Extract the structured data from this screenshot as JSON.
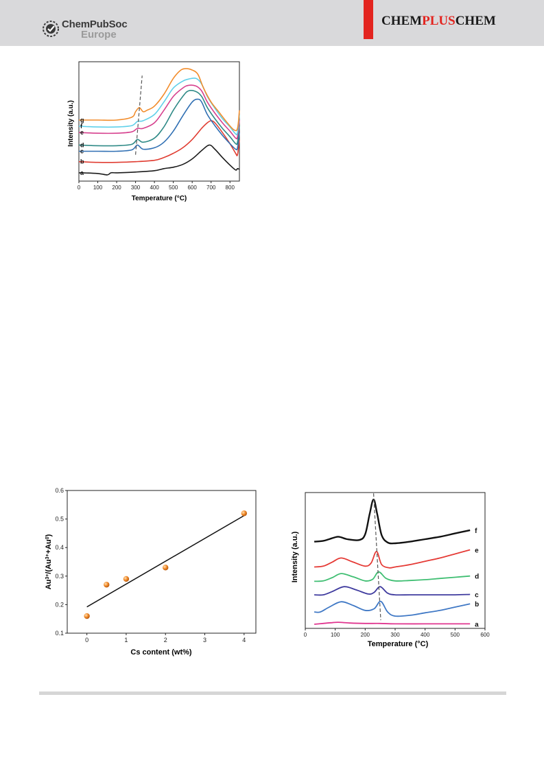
{
  "header": {
    "publisher_name": "ChemPubSoc",
    "publisher_region": "Europe",
    "journal_part1": "CHEM",
    "journal_part2": "PLUS",
    "journal_part3": "CHEM",
    "accent_color": "#e3241f",
    "header_bg": "#d9d9db"
  },
  "chart_data": [
    {
      "type": "line",
      "xlabel": "Temperature (°C)",
      "ylabel": "Intensity (a.u.)",
      "xlim": [
        0,
        850
      ],
      "xticks": [
        0,
        100,
        200,
        300,
        400,
        500,
        600,
        700,
        800
      ],
      "y_ticks_shown": false,
      "series": [
        {
          "name": "a",
          "color": "#1a1a1a",
          "x": [
            0,
            100,
            150,
            170,
            200,
            300,
            400,
            450,
            500,
            550,
            600,
            650,
            690,
            720,
            760,
            800,
            830,
            840,
            850
          ],
          "y": [
            0.02,
            0.01,
            -0.01,
            0.02,
            0.02,
            0.03,
            0.05,
            0.08,
            0.1,
            0.14,
            0.22,
            0.34,
            0.42,
            0.36,
            0.24,
            0.13,
            0.06,
            0.08,
            0.07
          ]
        },
        {
          "name": "b",
          "color": "#e03c31",
          "x": [
            0,
            100,
            200,
            300,
            400,
            450,
            500,
            550,
            600,
            650,
            680,
            700,
            720,
            760,
            800,
            830,
            840,
            850
          ],
          "y": [
            0.18,
            0.17,
            0.17,
            0.18,
            0.2,
            0.24,
            0.3,
            0.38,
            0.5,
            0.66,
            0.74,
            0.77,
            0.74,
            0.6,
            0.44,
            0.3,
            0.28,
            0.5
          ]
        },
        {
          "name": "c",
          "color": "#2f6fb3",
          "x": [
            0,
            100,
            200,
            280,
            310,
            340,
            400,
            450,
            500,
            550,
            600,
            630,
            650,
            680,
            720,
            760,
            800,
            830,
            840,
            850
          ],
          "y": [
            0.33,
            0.33,
            0.33,
            0.35,
            0.42,
            0.36,
            0.38,
            0.46,
            0.62,
            0.84,
            1.04,
            1.08,
            1.04,
            0.86,
            0.7,
            0.56,
            0.44,
            0.36,
            0.38,
            0.6
          ]
        },
        {
          "name": "d",
          "color": "#2f8a87",
          "x": [
            0,
            100,
            200,
            280,
            310,
            340,
            400,
            450,
            500,
            550,
            580,
            620,
            650,
            680,
            720,
            760,
            800,
            830,
            840,
            850
          ],
          "y": [
            0.42,
            0.41,
            0.41,
            0.43,
            0.5,
            0.46,
            0.52,
            0.68,
            0.92,
            1.12,
            1.2,
            1.19,
            1.12,
            0.96,
            0.8,
            0.66,
            0.54,
            0.44,
            0.46,
            0.7
          ]
        },
        {
          "name": "e",
          "color": "#d6408e",
          "x": [
            0,
            100,
            200,
            280,
            310,
            340,
            400,
            450,
            500,
            550,
            580,
            620,
            650,
            680,
            720,
            760,
            800,
            830,
            840,
            850
          ],
          "y": [
            0.6,
            0.59,
            0.59,
            0.61,
            0.66,
            0.66,
            0.74,
            0.92,
            1.12,
            1.24,
            1.28,
            1.27,
            1.2,
            1.04,
            0.88,
            0.74,
            0.62,
            0.52,
            0.54,
            0.78
          ]
        },
        {
          "name": "f",
          "color": "#5fd0ea",
          "x": [
            0,
            100,
            200,
            280,
            310,
            340,
            400,
            450,
            500,
            550,
            580,
            620,
            650,
            680,
            720,
            760,
            800,
            830,
            840,
            850
          ],
          "y": [
            0.69,
            0.68,
            0.68,
            0.7,
            0.76,
            0.77,
            0.86,
            1.04,
            1.24,
            1.34,
            1.37,
            1.38,
            1.3,
            1.12,
            0.95,
            0.8,
            0.68,
            0.58,
            0.6,
            0.86
          ]
        },
        {
          "name": "g",
          "color": "#f28c2b",
          "x": [
            0,
            100,
            200,
            280,
            300,
            320,
            340,
            360,
            400,
            450,
            500,
            540,
            570,
            600,
            630,
            660,
            700,
            740,
            780,
            820,
            840,
            850
          ],
          "y": [
            0.78,
            0.78,
            0.78,
            0.82,
            0.9,
            0.96,
            0.9,
            0.92,
            0.98,
            1.15,
            1.38,
            1.5,
            1.52,
            1.5,
            1.44,
            1.24,
            1.04,
            0.9,
            0.76,
            0.64,
            0.66,
            0.92
          ]
        }
      ],
      "reference_line": {
        "style": "dashed",
        "x": [
          300,
          335
        ]
      }
    },
    {
      "type": "scatter",
      "xlabel": "Cs content (wt%)",
      "ylabel": "Au3+/(Au3++Au0)",
      "xlim": [
        -0.5,
        4.3
      ],
      "ylim": [
        0.1,
        0.6
      ],
      "xticks": [
        0,
        1,
        2,
        3,
        4
      ],
      "yticks": [
        0.1,
        0.2,
        0.3,
        0.4,
        0.5,
        0.6
      ],
      "points": [
        {
          "x": 0,
          "y": 0.16
        },
        {
          "x": 0.5,
          "y": 0.27
        },
        {
          "x": 1,
          "y": 0.29
        },
        {
          "x": 2,
          "y": 0.33
        },
        {
          "x": 4,
          "y": 0.52
        }
      ],
      "fit_line": {
        "x": [
          0,
          4
        ],
        "y": [
          0.192,
          0.512
        ]
      },
      "marker_color": "#f28c2b"
    },
    {
      "type": "line",
      "xlabel": "Temperature (°C)",
      "ylabel": "Intensity (a.u.)",
      "xlim": [
        0,
        600
      ],
      "xticks": [
        0,
        100,
        200,
        300,
        400,
        500,
        600
      ],
      "y_ticks_shown": false,
      "series": [
        {
          "name": "a",
          "color": "#e0358f",
          "x": [
            30,
            60,
            90,
            110,
            150,
            200,
            250,
            300,
            400,
            500,
            550
          ],
          "y": [
            0.0,
            0.02,
            0.04,
            0.05,
            0.03,
            0.02,
            0.02,
            0.01,
            0.01,
            0.01,
            0.01
          ]
        },
        {
          "name": "b",
          "color": "#3f78c5",
          "x": [
            30,
            50,
            80,
            120,
            160,
            200,
            230,
            252,
            275,
            300,
            350,
            400,
            450,
            500,
            550
          ],
          "y": [
            0.3,
            0.3,
            0.42,
            0.55,
            0.46,
            0.34,
            0.38,
            0.56,
            0.3,
            0.2,
            0.22,
            0.28,
            0.34,
            0.42,
            0.5
          ]
        },
        {
          "name": "c",
          "color": "#3e3a9e",
          "x": [
            30,
            60,
            90,
            130,
            170,
            210,
            230,
            250,
            275,
            300,
            350,
            400,
            450,
            500,
            550
          ],
          "y": [
            0.72,
            0.72,
            0.8,
            0.92,
            0.84,
            0.74,
            0.78,
            0.92,
            0.76,
            0.72,
            0.72,
            0.72,
            0.72,
            0.72,
            0.73
          ]
        },
        {
          "name": "d",
          "color": "#3fbe72",
          "x": [
            30,
            60,
            90,
            120,
            160,
            200,
            225,
            245,
            270,
            300,
            350,
            400,
            450,
            500,
            550
          ],
          "y": [
            1.05,
            1.06,
            1.14,
            1.24,
            1.16,
            1.06,
            1.1,
            1.28,
            1.12,
            1.06,
            1.07,
            1.09,
            1.12,
            1.15,
            1.18
          ]
        },
        {
          "name": "e",
          "color": "#e53a35",
          "x": [
            30,
            60,
            90,
            120,
            160,
            200,
            220,
            238,
            255,
            280,
            300,
            350,
            400,
            450,
            500,
            550
          ],
          "y": [
            1.4,
            1.42,
            1.52,
            1.62,
            1.52,
            1.42,
            1.5,
            1.78,
            1.46,
            1.38,
            1.4,
            1.46,
            1.54,
            1.62,
            1.72,
            1.82
          ]
        },
        {
          "name": "f",
          "color": "#111111",
          "x": [
            30,
            60,
            80,
            110,
            140,
            180,
            200,
            215,
            228,
            240,
            255,
            275,
            300,
            350,
            400,
            450,
            500,
            550
          ],
          "y": [
            2.02,
            2.04,
            2.08,
            2.14,
            2.08,
            2.06,
            2.2,
            2.7,
            3.05,
            2.7,
            2.18,
            2.0,
            1.98,
            2.02,
            2.08,
            2.14,
            2.22,
            2.3
          ]
        }
      ],
      "reference_line": {
        "style": "dashed",
        "x": [
          228,
          252
        ]
      }
    }
  ]
}
